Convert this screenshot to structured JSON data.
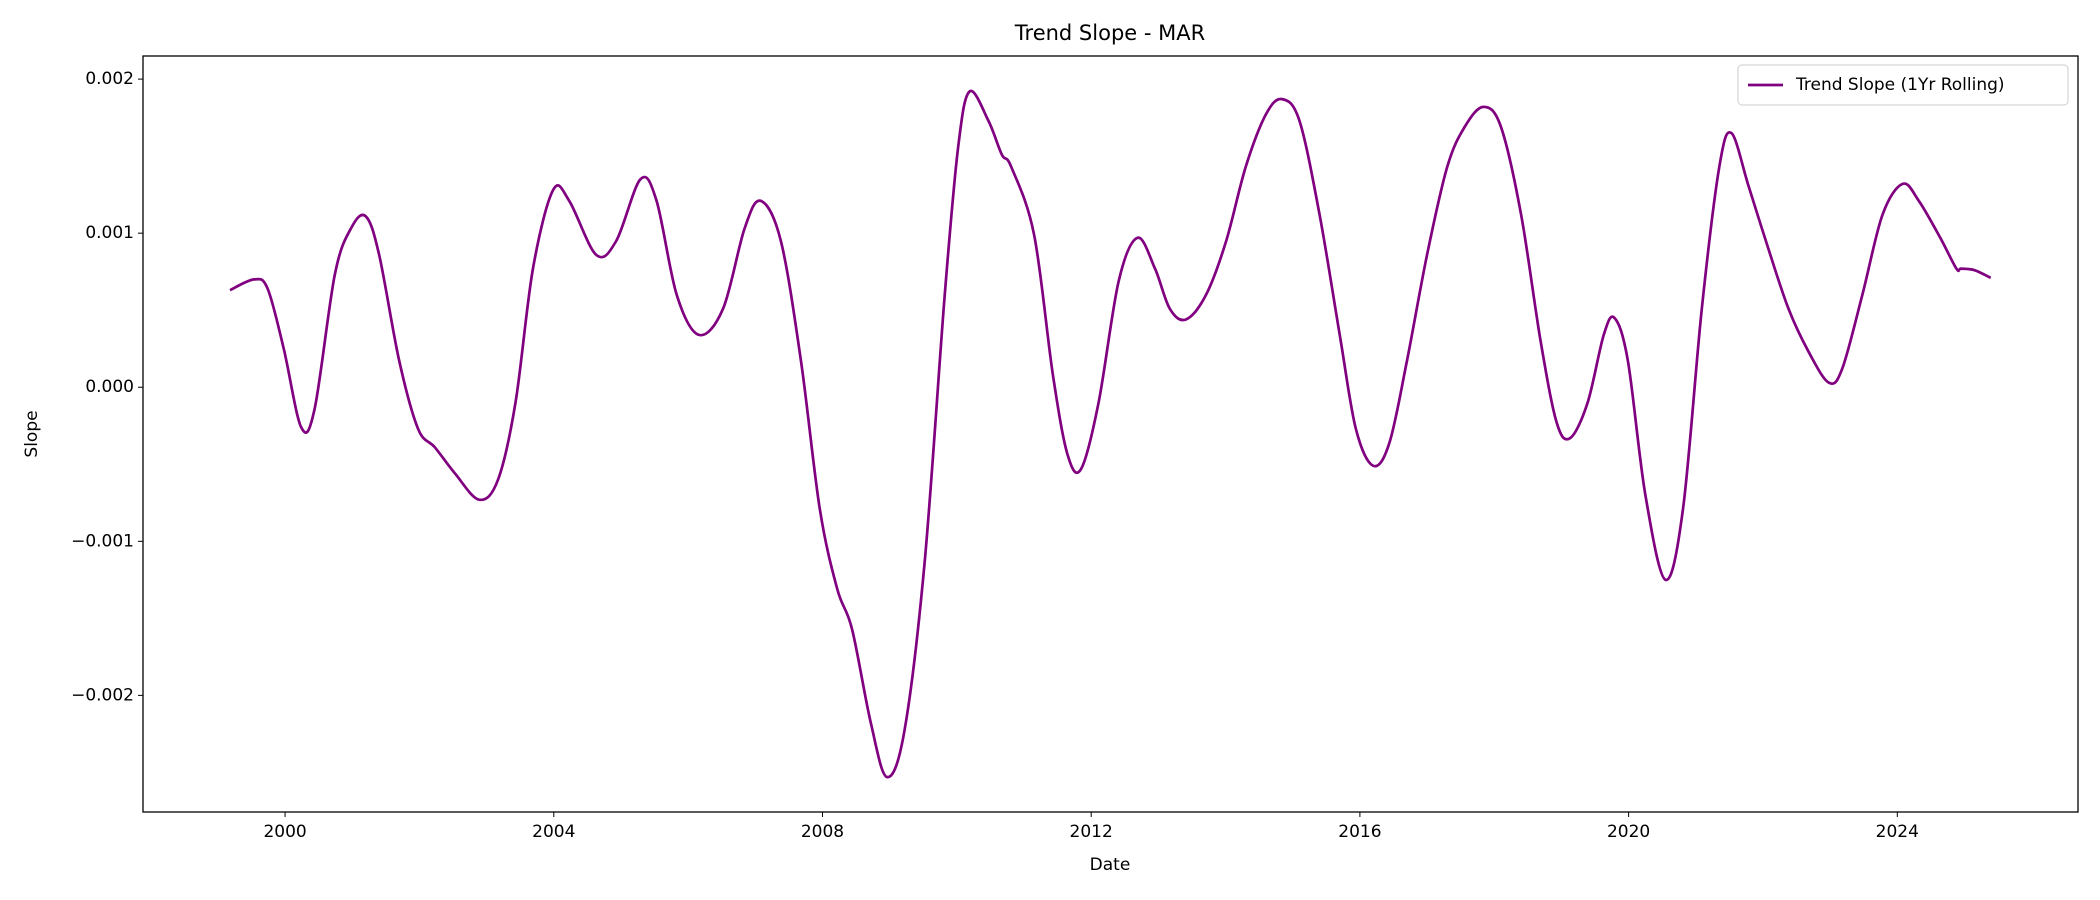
{
  "chart_data": {
    "type": "line",
    "title": "Trend Slope - MAR",
    "xlabel": "Date",
    "ylabel": "Slope",
    "legend": "upper right",
    "grid": false,
    "xlim": [
      1997.885,
      2026.69
    ],
    "xticks": [
      2000,
      2004,
      2008,
      2012,
      2016,
      2020,
      2024
    ],
    "ylim": [
      -0.002757,
      0.00215
    ],
    "yticks": [
      {
        "value": -0.002,
        "label": "−0.002"
      },
      {
        "value": -0.001,
        "label": "−0.001"
      },
      {
        "value": 0,
        "label": "0.000"
      },
      {
        "value": 0.001,
        "label": "0.001"
      },
      {
        "value": 0.002,
        "label": "0.002"
      }
    ],
    "x": [
      1999.18,
      1999.54,
      1999.74,
      1999.98,
      2000.24,
      2000.44,
      2000.74,
      2000.98,
      2001.2,
      2001.4,
      2001.7,
      2001.98,
      2002.23,
      2002.53,
      2002.89,
      2003.17,
      2003.43,
      2003.69,
      2003.99,
      2004.23,
      2004.63,
      2004.93,
      2005.29,
      2005.53,
      2005.83,
      2006.16,
      2006.52,
      2006.84,
      2007.08,
      2007.38,
      2007.68,
      2007.96,
      2008.22,
      2008.44,
      2008.72,
      2008.96,
      2009.22,
      2009.52,
      2009.82,
      2010.02,
      2010.19,
      2010.47,
      2010.67,
      2010.81,
      2011.15,
      2011.43,
      2011.65,
      2011.85,
      2012.11,
      2012.41,
      2012.69,
      2012.95,
      2013.17,
      2013.41,
      2013.71,
      2014.01,
      2014.3,
      2014.6,
      2014.84,
      2015.1,
      2015.4,
      2015.7,
      2015.94,
      2016.2,
      2016.44,
      2016.7,
      2017.0,
      2017.3,
      2017.56,
      2017.84,
      2018.1,
      2018.4,
      2018.69,
      2018.93,
      2019.13,
      2019.39,
      2019.63,
      2019.79,
      2019.99,
      2020.25,
      2020.55,
      2020.81,
      2021.09,
      2021.35,
      2021.53,
      2021.79,
      2022.08,
      2022.38,
      2022.68,
      2022.98,
      2023.18,
      2023.48,
      2023.78,
      2024.08,
      2024.32,
      2024.64,
      2024.88,
      2024.95,
      2025.15,
      2025.39
    ],
    "series": [
      {
        "name": "Trend Slope (1Yr Rolling)",
        "color": "#800080",
        "values": [
          0.00063,
          0.0007,
          0.00064,
          0.00025,
          -0.00026,
          -0.00014,
          0.00073,
          0.00103,
          0.00111,
          0.00086,
          0.00017,
          -0.00027,
          -0.00039,
          -0.00056,
          -0.00073,
          -0.0006,
          -0.0001,
          0.00077,
          0.00128,
          0.00121,
          0.00086,
          0.00095,
          0.00135,
          0.00121,
          0.0006,
          0.00034,
          0.00051,
          0.00103,
          0.00121,
          0.00095,
          0.00017,
          -0.00079,
          -0.00131,
          -0.00157,
          -0.00218,
          -0.00253,
          -0.00223,
          -0.00114,
          0.0006,
          0.00156,
          0.00192,
          0.00173,
          0.00151,
          0.00143,
          0.00099,
          8e-05,
          -0.00044,
          -0.00053,
          -0.0001,
          0.00069,
          0.00097,
          0.00077,
          0.00051,
          0.00044,
          0.0006,
          0.00095,
          0.00143,
          0.00177,
          0.00187,
          0.00173,
          0.00112,
          0.00034,
          -0.00027,
          -0.00051,
          -0.00036,
          0.00017,
          0.00086,
          0.00143,
          0.00169,
          0.00182,
          0.00169,
          0.00112,
          0.0003,
          -0.00023,
          -0.00033,
          -0.0001,
          0.00034,
          0.00045,
          0.00017,
          -0.0007,
          -0.00125,
          -0.00079,
          0.00051,
          0.00143,
          0.00165,
          0.0013,
          0.0009,
          0.00051,
          0.00023,
          3e-05,
          0.00012,
          0.0006,
          0.00112,
          0.00132,
          0.00121,
          0.00097,
          0.00077,
          0.00077,
          0.00076,
          0.00071
        ]
      }
    ]
  }
}
